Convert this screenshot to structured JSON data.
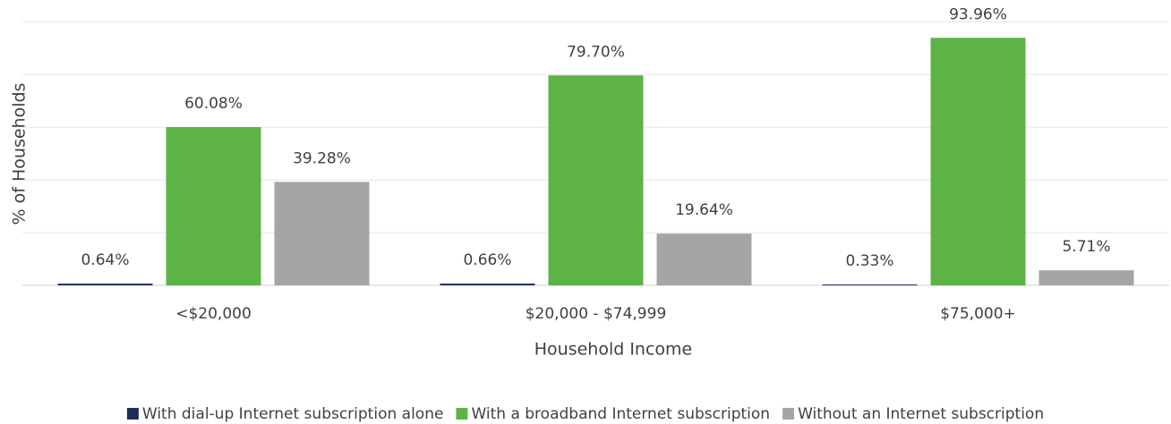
{
  "chart_data": {
    "type": "bar",
    "x_label": "Household Income",
    "y_label": "% of Households",
    "categories": [
      "<$20,000",
      "$20,000 - $74,999",
      "$75,000+"
    ],
    "series": [
      {
        "name": "With dial-up Internet subscription alone",
        "color": "#1f2d5a",
        "values": [
          0.64,
          0.66,
          0.33
        ],
        "value_labels": [
          "0.64%",
          "0.66%",
          "0.33%"
        ]
      },
      {
        "name": "With a broadband Internet subscription",
        "color": "#5db346",
        "values": [
          60.08,
          79.7,
          93.96
        ],
        "value_labels": [
          "60.08%",
          "79.70%",
          "93.96%"
        ]
      },
      {
        "name": "Without an Internet subscription",
        "color": "#a5a5a5",
        "values": [
          39.28,
          19.64,
          5.71
        ],
        "value_labels": [
          "39.28%",
          "19.64%",
          "5.71%"
        ]
      }
    ],
    "ylim": [
      0,
      100
    ],
    "yticks": [
      0,
      20,
      40,
      60,
      80,
      100
    ],
    "grid": true,
    "legend": "bottom"
  }
}
